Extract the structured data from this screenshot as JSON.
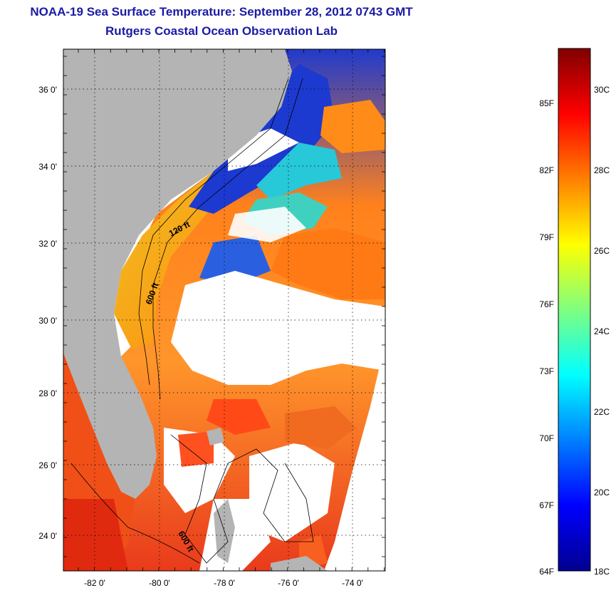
{
  "header": {
    "title": "NOAA-19 Sea Surface Temperature:  September 28, 2012 0743 GMT",
    "subtitle": "Rutgers Coastal Ocean Observation Lab"
  },
  "map": {
    "lat_ticks": [
      "36 0'",
      "34 0'",
      "32 0'",
      "30 0'",
      "28 0'",
      "26 0'",
      "24 0'"
    ],
    "lon_ticks": [
      "-82 0'",
      "-80 0'",
      "-78 0'",
      "-76 0'",
      "-74 0'"
    ],
    "lat_range": [
      23.0,
      37.0
    ],
    "lon_range": [
      -83.0,
      -73.0
    ],
    "contour_labels": [
      "120 ft",
      "600 ft",
      "600 ft"
    ],
    "colors": {
      "land": "#b4b4b4",
      "cloud": "#ffffff"
    }
  },
  "colorbar": {
    "fahrenheit_labels": [
      "85F",
      "82F",
      "79F",
      "76F",
      "73F",
      "70F",
      "67F",
      "64F"
    ],
    "celsius_labels": [
      "30C",
      "28C",
      "26C",
      "24C",
      "22C",
      "20C",
      "18C"
    ],
    "range_c": [
      18,
      31.3
    ],
    "colormap": "jet"
  }
}
